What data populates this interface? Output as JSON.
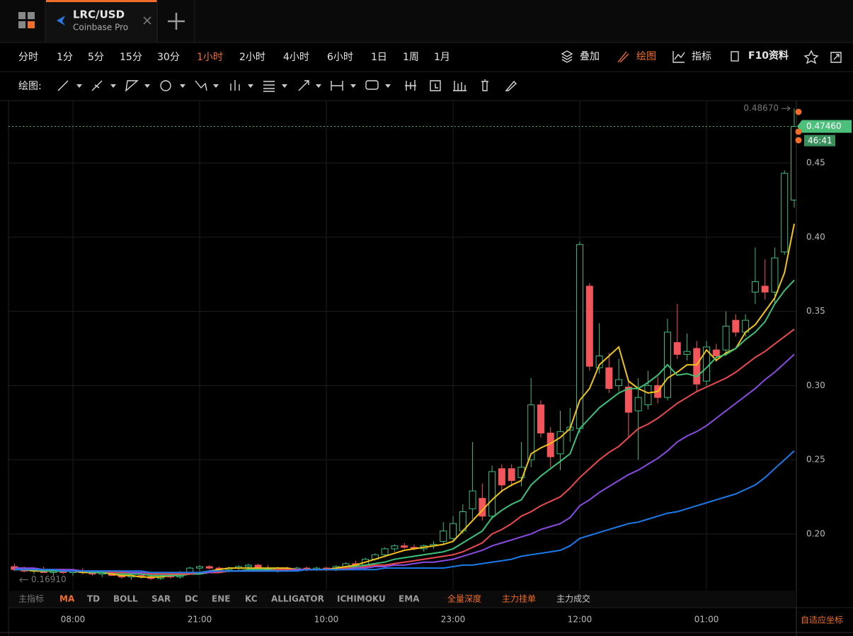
{
  "tab": {
    "symbol": "LRC/USD",
    "exchange": "Coinbase Pro"
  },
  "intervals": [
    "分时",
    "1分",
    "5分",
    "15分",
    "30分",
    "1小时",
    "2小时",
    "4小时",
    "6小时",
    "1日",
    "1周",
    "1月"
  ],
  "active_interval": 5,
  "toolbar_right": [
    "叠加",
    "绘图",
    "指标",
    "F10资料"
  ],
  "draw_label": "绘图:",
  "indicators": [
    "主指标",
    "MA",
    "TD",
    "BOLL",
    "SAR",
    "DC",
    "ENE",
    "KC",
    "ALLIGATOR",
    "ICHIMOKU",
    "EMA",
    "全量深度",
    "主力挂单",
    "主力成交"
  ],
  "axis_mode": "自适应坐标",
  "chart_data": {
    "type": "candlestick",
    "categories": [
      null,
      null,
      null,
      null,
      null,
      null,
      "08:00",
      null,
      null,
      null,
      null,
      null,
      null,
      null,
      null,
      null,
      null,
      null,
      null,
      "21:00",
      null,
      null,
      null,
      null,
      null,
      null,
      null,
      null,
      null,
      null,
      null,
      null,
      "10:00",
      null,
      null,
      null,
      null,
      null,
      null,
      null,
      null,
      null,
      null,
      null,
      null,
      "23:00",
      null,
      null,
      null,
      null,
      null,
      null,
      null,
      null,
      null,
      null,
      null,
      null,
      "12:00",
      null,
      null,
      null,
      null,
      null,
      null,
      null,
      null,
      null,
      null,
      null,
      null,
      "01:00",
      null,
      null,
      null,
      null,
      null,
      null,
      null,
      null,
      null
    ],
    "open": [
      0.178,
      0.176,
      0.175,
      0.176,
      0.174,
      0.175,
      0.174,
      0.175,
      0.174,
      0.173,
      0.174,
      0.172,
      0.171,
      0.172,
      0.171,
      0.17,
      0.172,
      0.171,
      0.174,
      0.177,
      0.178,
      0.177,
      0.176,
      0.177,
      0.178,
      0.179,
      0.177,
      0.176,
      0.177,
      0.176,
      0.177,
      0.176,
      0.177,
      0.176,
      0.178,
      0.18,
      0.179,
      0.183,
      0.186,
      0.19,
      0.192,
      0.191,
      0.19,
      0.192,
      0.195,
      0.197,
      0.202,
      0.217,
      0.224,
      0.212,
      0.244,
      0.244,
      0.238,
      0.25,
      0.287,
      0.268,
      0.254,
      0.27,
      0.271,
      0.367,
      0.312,
      0.312,
      0.3,
      0.299,
      0.283,
      0.287,
      0.3,
      0.292,
      0.329,
      0.321,
      0.325,
      0.303,
      0.324,
      0.324,
      0.344,
      0.336,
      0.363,
      0.367,
      0.363,
      0.39,
      0.425
    ],
    "high": [
      0.18,
      0.178,
      0.177,
      0.178,
      0.176,
      0.176,
      0.176,
      0.177,
      0.175,
      0.175,
      0.175,
      0.174,
      0.173,
      0.174,
      0.173,
      0.173,
      0.174,
      0.175,
      0.178,
      0.179,
      0.179,
      0.178,
      0.178,
      0.179,
      0.18,
      0.18,
      0.179,
      0.178,
      0.178,
      0.178,
      0.178,
      0.178,
      0.178,
      0.179,
      0.181,
      0.182,
      0.184,
      0.187,
      0.191,
      0.193,
      0.194,
      0.193,
      0.193,
      0.195,
      0.208,
      0.212,
      0.22,
      0.262,
      0.234,
      0.246,
      0.247,
      0.247,
      0.262,
      0.305,
      0.29,
      0.272,
      0.283,
      0.285,
      0.397,
      0.369,
      0.342,
      0.322,
      0.318,
      0.303,
      0.305,
      0.31,
      0.306,
      0.345,
      0.355,
      0.335,
      0.33,
      0.33,
      0.328,
      0.35,
      0.348,
      0.348,
      0.393,
      0.385,
      0.393,
      0.445,
      0.4867
    ],
    "low": [
      0.175,
      0.174,
      0.173,
      0.174,
      0.172,
      0.173,
      0.172,
      0.173,
      0.172,
      0.171,
      0.172,
      0.17,
      0.169,
      0.17,
      0.169,
      0.169,
      0.17,
      0.17,
      0.173,
      0.175,
      0.176,
      0.175,
      0.174,
      0.175,
      0.176,
      0.176,
      0.175,
      0.174,
      0.175,
      0.175,
      0.175,
      0.175,
      0.175,
      0.175,
      0.177,
      0.178,
      0.178,
      0.182,
      0.185,
      0.188,
      0.19,
      0.189,
      0.188,
      0.19,
      0.193,
      0.195,
      0.2,
      0.21,
      0.209,
      0.21,
      0.228,
      0.232,
      0.232,
      0.245,
      0.265,
      0.245,
      0.243,
      0.262,
      0.268,
      0.31,
      0.308,
      0.295,
      0.296,
      0.265,
      0.25,
      0.284,
      0.288,
      0.29,
      0.318,
      0.317,
      0.296,
      0.3,
      0.316,
      0.32,
      0.333,
      0.333,
      0.355,
      0.358,
      0.355,
      0.388,
      0.42
    ],
    "close": [
      0.176,
      0.175,
      0.176,
      0.174,
      0.175,
      0.174,
      0.175,
      0.174,
      0.173,
      0.174,
      0.172,
      0.171,
      0.172,
      0.171,
      0.17,
      0.172,
      0.171,
      0.174,
      0.177,
      0.178,
      0.177,
      0.176,
      0.177,
      0.178,
      0.179,
      0.177,
      0.176,
      0.177,
      0.176,
      0.177,
      0.176,
      0.177,
      0.176,
      0.178,
      0.18,
      0.179,
      0.183,
      0.186,
      0.19,
      0.192,
      0.191,
      0.19,
      0.192,
      0.193,
      0.202,
      0.207,
      0.215,
      0.229,
      0.212,
      0.242,
      0.233,
      0.236,
      0.245,
      0.287,
      0.268,
      0.252,
      0.269,
      0.272,
      0.395,
      0.313,
      0.32,
      0.298,
      0.304,
      0.282,
      0.292,
      0.3,
      0.292,
      0.336,
      0.321,
      0.323,
      0.301,
      0.326,
      0.32,
      0.34,
      0.336,
      0.344,
      0.37,
      0.363,
      0.386,
      0.443,
      0.4746
    ],
    "up_color": "#3dbd7d",
    "down_color": "#f2555a",
    "series": [
      {
        "color": "#f0c419",
        "values": [
          0.176,
          0.176,
          0.175,
          0.175,
          0.175,
          0.175,
          0.175,
          0.174,
          0.174,
          0.174,
          0.173,
          0.172,
          0.172,
          0.171,
          0.171,
          0.171,
          0.172,
          0.172,
          0.173,
          0.174,
          0.175,
          0.176,
          0.177,
          0.177,
          0.177,
          0.177,
          0.177,
          0.177,
          0.177,
          0.176,
          0.176,
          0.176,
          0.176,
          0.177,
          0.178,
          0.179,
          0.181,
          0.183,
          0.185,
          0.187,
          0.189,
          0.19,
          0.191,
          0.192,
          0.193,
          0.195,
          0.202,
          0.209,
          0.216,
          0.223,
          0.229,
          0.233,
          0.236,
          0.254,
          0.258,
          0.261,
          0.265,
          0.271,
          0.29,
          0.298,
          0.314,
          0.32,
          0.326,
          0.303,
          0.298,
          0.295,
          0.296,
          0.305,
          0.309,
          0.314,
          0.314,
          0.324,
          0.317,
          0.322,
          0.325,
          0.336,
          0.341,
          0.35,
          0.359,
          0.376,
          0.409
        ]
      },
      {
        "color": "#3cc07a",
        "values": [
          0.176,
          0.176,
          0.176,
          0.175,
          0.175,
          0.175,
          0.175,
          0.175,
          0.174,
          0.174,
          0.174,
          0.173,
          0.173,
          0.173,
          0.172,
          0.172,
          0.172,
          0.172,
          0.173,
          0.173,
          0.174,
          0.174,
          0.175,
          0.175,
          0.176,
          0.176,
          0.176,
          0.176,
          0.176,
          0.176,
          0.176,
          0.176,
          0.176,
          0.176,
          0.177,
          0.178,
          0.179,
          0.18,
          0.181,
          0.183,
          0.184,
          0.185,
          0.186,
          0.187,
          0.188,
          0.19,
          0.194,
          0.198,
          0.202,
          0.211,
          0.216,
          0.22,
          0.223,
          0.233,
          0.239,
          0.244,
          0.249,
          0.254,
          0.271,
          0.278,
          0.285,
          0.29,
          0.295,
          0.298,
          0.298,
          0.302,
          0.307,
          0.314,
          0.307,
          0.308,
          0.306,
          0.312,
          0.319,
          0.321,
          0.325,
          0.331,
          0.336,
          0.343,
          0.355,
          0.364,
          0.371
        ]
      },
      {
        "color": "#e84a4f",
        "values": [
          0.177,
          0.177,
          0.176,
          0.176,
          0.176,
          0.176,
          0.175,
          0.175,
          0.175,
          0.175,
          0.174,
          0.174,
          0.174,
          0.174,
          0.173,
          0.173,
          0.173,
          0.173,
          0.173,
          0.174,
          0.174,
          0.174,
          0.175,
          0.175,
          0.175,
          0.175,
          0.175,
          0.176,
          0.176,
          0.176,
          0.176,
          0.176,
          0.176,
          0.176,
          0.177,
          0.177,
          0.178,
          0.179,
          0.179,
          0.18,
          0.181,
          0.182,
          0.183,
          0.184,
          0.185,
          0.186,
          0.188,
          0.191,
          0.194,
          0.2,
          0.203,
          0.207,
          0.212,
          0.215,
          0.219,
          0.222,
          0.225,
          0.231,
          0.238,
          0.244,
          0.25,
          0.255,
          0.259,
          0.265,
          0.271,
          0.274,
          0.278,
          0.283,
          0.288,
          0.292,
          0.296,
          0.299,
          0.302,
          0.305,
          0.309,
          0.314,
          0.319,
          0.323,
          0.328,
          0.333,
          0.338
        ]
      },
      {
        "color": "#8a4be0",
        "values": [
          0.177,
          0.177,
          0.177,
          0.176,
          0.176,
          0.176,
          0.176,
          0.175,
          0.175,
          0.175,
          0.175,
          0.175,
          0.174,
          0.174,
          0.174,
          0.174,
          0.174,
          0.174,
          0.174,
          0.174,
          0.174,
          0.175,
          0.175,
          0.175,
          0.175,
          0.175,
          0.175,
          0.175,
          0.175,
          0.176,
          0.176,
          0.176,
          0.176,
          0.176,
          0.176,
          0.177,
          0.177,
          0.178,
          0.178,
          0.179,
          0.179,
          0.18,
          0.181,
          0.181,
          0.182,
          0.183,
          0.185,
          0.187,
          0.189,
          0.192,
          0.194,
          0.196,
          0.198,
          0.2,
          0.203,
          0.205,
          0.207,
          0.211,
          0.219,
          0.223,
          0.228,
          0.232,
          0.236,
          0.24,
          0.243,
          0.247,
          0.251,
          0.256,
          0.262,
          0.266,
          0.269,
          0.273,
          0.278,
          0.283,
          0.288,
          0.293,
          0.298,
          0.304,
          0.309,
          0.315,
          0.321
        ]
      },
      {
        "color": "#1a7ae8",
        "values": [
          0.176,
          0.176,
          0.176,
          0.176,
          0.176,
          0.175,
          0.175,
          0.175,
          0.175,
          0.175,
          0.175,
          0.175,
          0.175,
          0.175,
          0.174,
          0.174,
          0.174,
          0.174,
          0.174,
          0.174,
          0.175,
          0.175,
          0.175,
          0.175,
          0.175,
          0.175,
          0.175,
          0.175,
          0.175,
          0.175,
          0.176,
          0.176,
          0.176,
          0.176,
          0.176,
          0.176,
          0.176,
          0.176,
          0.177,
          0.177,
          0.177,
          0.177,
          0.177,
          0.177,
          0.177,
          0.178,
          0.179,
          0.179,
          0.18,
          0.181,
          0.182,
          0.183,
          0.185,
          0.186,
          0.187,
          0.188,
          0.189,
          0.192,
          0.197,
          0.199,
          0.201,
          0.203,
          0.205,
          0.207,
          0.208,
          0.21,
          0.212,
          0.214,
          0.215,
          0.217,
          0.219,
          0.221,
          0.223,
          0.225,
          0.227,
          0.23,
          0.233,
          0.238,
          0.244,
          0.25,
          0.256
        ]
      }
    ],
    "ylim": [
      0.1637,
      0.4906
    ],
    "yticks": [
      {
        "value": 0.2,
        "label": "0.20"
      },
      {
        "value": 0.25,
        "label": "0.25"
      },
      {
        "value": 0.3,
        "label": "0.30"
      },
      {
        "value": 0.35,
        "label": "0.35"
      },
      {
        "value": 0.4,
        "label": "0.40"
      },
      {
        "value": 0.45,
        "label": "0.45"
      }
    ],
    "grid": true,
    "annotations": {
      "high": {
        "value": 0.4867,
        "label": "0.48670"
      },
      "last": {
        "value": 0.4746,
        "label": "0.47460"
      },
      "low": {
        "value": 0.1691,
        "label": "0.16910"
      },
      "countdown": "46:41"
    }
  }
}
